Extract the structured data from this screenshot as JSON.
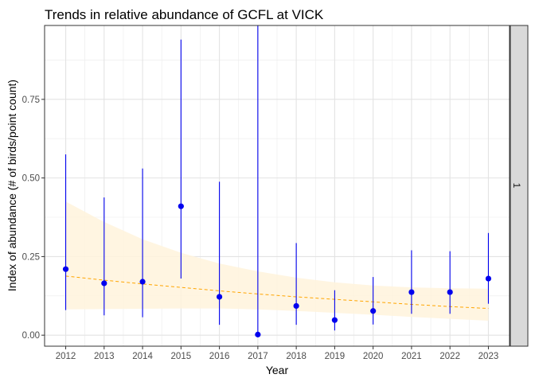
{
  "chart_data": {
    "type": "scatter",
    "title": "Trends in relative abundance of GCFL at VICK",
    "xlabel": "Year",
    "ylabel": "Index of abundance (# of birds/point count)",
    "facet_label": "1",
    "x": [
      2012,
      2013,
      2014,
      2015,
      2016,
      2017,
      2018,
      2019,
      2020,
      2021,
      2022,
      2023
    ],
    "x_tick_labels": [
      "2012",
      "2013",
      "2014",
      "2015",
      "2016",
      "2017",
      "2018",
      "2019",
      "2020",
      "2021",
      "2022",
      "2023"
    ],
    "y_ticks": [
      0,
      0.25,
      0.5,
      0.75
    ],
    "y_tick_labels": [
      "0.00",
      "0.25",
      "0.50",
      "0.75"
    ],
    "xlim": [
      2011.45,
      2023.55
    ],
    "ylim": [
      -0.035,
      0.985
    ],
    "series": [
      {
        "values": [
          0.21,
          0.165,
          0.17,
          0.41,
          0.122,
          0.002,
          0.093,
          0.048,
          0.077,
          0.137,
          0.137,
          0.18
        ],
        "lower": [
          0.08,
          0.063,
          0.057,
          0.18,
          0.033,
          0.0,
          0.033,
          0.015,
          0.034,
          0.068,
          0.068,
          0.1
        ],
        "upper": [
          0.575,
          0.438,
          0.53,
          0.94,
          0.488,
          0.985,
          0.293,
          0.143,
          0.185,
          0.27,
          0.267,
          0.325
        ],
        "color": "#0000ee"
      }
    ],
    "trend": {
      "values": [
        0.188,
        0.175,
        0.163,
        0.152,
        0.141,
        0.131,
        0.122,
        0.114,
        0.106,
        0.098,
        0.091,
        0.085
      ],
      "lower": [
        0.082,
        0.083,
        0.084,
        0.085,
        0.085,
        0.082,
        0.077,
        0.071,
        0.065,
        0.058,
        0.052,
        0.046
      ],
      "upper": [
        0.425,
        0.36,
        0.305,
        0.262,
        0.228,
        0.203,
        0.183,
        0.168,
        0.158,
        0.152,
        0.149,
        0.148
      ],
      "line_color": "#ffa500",
      "band_color": "#fff3dc"
    },
    "grid": true,
    "legend": "none"
  }
}
